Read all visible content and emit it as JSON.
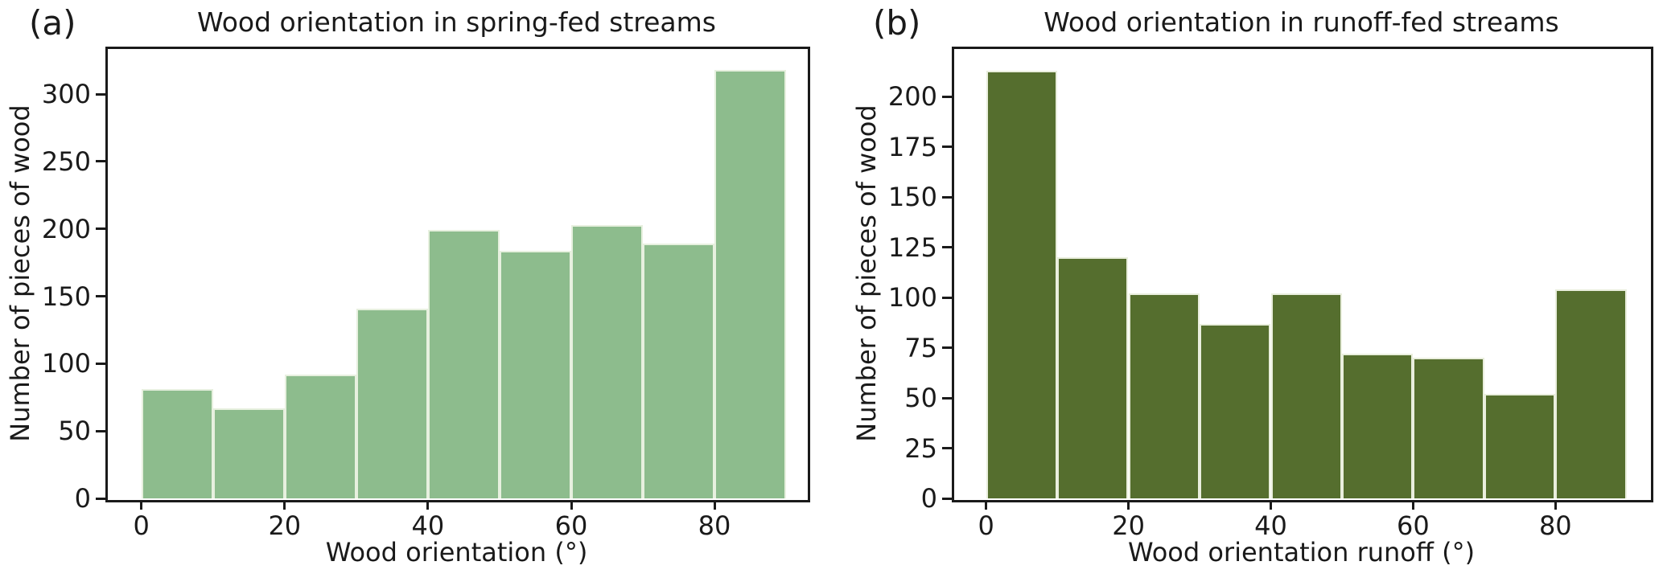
{
  "figure": {
    "background_color": "#ffffff",
    "text_color": "#1a1a1a"
  },
  "chart_data": [
    {
      "type": "bar",
      "panel_label": "(a)",
      "title": "Wood orientation in spring-fed streams",
      "xlabel": "Wood orientation (°)",
      "ylabel": "Number of pieces of wood",
      "bin_start": 0,
      "bin_width": 10,
      "bin_edges": [
        0,
        10,
        20,
        30,
        40,
        50,
        60,
        70,
        80,
        90
      ],
      "values": [
        81,
        67,
        92,
        141,
        199,
        184,
        203,
        189,
        318
      ],
      "xticks": [
        0,
        20,
        40,
        60,
        80
      ],
      "yticks": [
        0,
        50,
        100,
        150,
        200,
        250,
        300
      ],
      "xlim": [
        -4.8,
        92.8
      ],
      "ylim": [
        0,
        334
      ],
      "grid": false,
      "legend": null,
      "bar_color": "#8dbc8d",
      "bar_edge_color": "#e7f0df"
    },
    {
      "type": "bar",
      "panel_label": "(b)",
      "title": "Wood orientation in runoff-fed streams",
      "xlabel": "Wood orientation runoff (°)",
      "ylabel": "Number of pieces of wood",
      "bin_start": 0,
      "bin_width": 10,
      "bin_edges": [
        0,
        10,
        20,
        30,
        40,
        50,
        60,
        70,
        80,
        90
      ],
      "values": [
        213,
        120,
        102,
        87,
        102,
        72,
        70,
        52,
        104
      ],
      "xticks": [
        0,
        20,
        40,
        60,
        80
      ],
      "yticks": [
        0,
        25,
        50,
        75,
        100,
        125,
        150,
        175,
        200
      ],
      "xlim": [
        -4.6,
        93.2
      ],
      "ylim": [
        0,
        224
      ],
      "grid": false,
      "legend": null,
      "bar_color": "#556e2e",
      "bar_edge_color": "#e9eedd"
    }
  ]
}
